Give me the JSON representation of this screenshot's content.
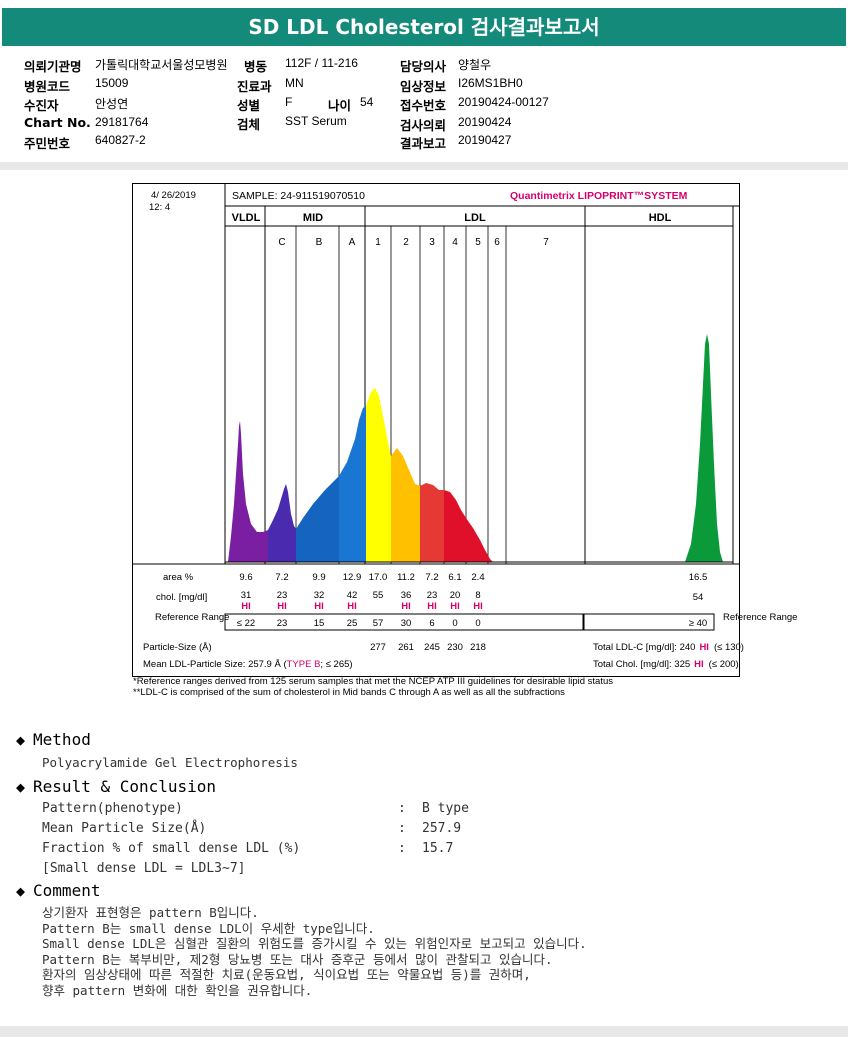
{
  "title": "SD LDL Cholesterol 검사결과보고서",
  "header": {
    "ordering_hospital_label": "의뢰기관명",
    "ordering_hospital": "가톨릭대학교서울성모병원",
    "ward_label": "병동",
    "ward": "112F / 11-216",
    "physician_label": "담당의사",
    "physician": "양철우",
    "hospital_code_label": "병원코드",
    "hospital_code": "15009",
    "department_label": "진료과",
    "department": "MN",
    "clinical_info_label": "임상정보",
    "clinical_info": "I26MS1BH0",
    "patient_label": "수진자",
    "patient": "안성연",
    "sex_label": "성별",
    "sex": "F",
    "age_label": "나이",
    "age": "54",
    "accession_label": "접수번호",
    "accession": "20190424-00127",
    "chart_label": "Chart No.",
    "chart": "29181764",
    "specimen_label": "검체",
    "specimen": "SST Serum",
    "request_date_label": "검사의뢰",
    "request_date": "20190424",
    "report_date_label": "결과보고",
    "report_date": "20190427",
    "resident_label": "주민번호",
    "resident": "640827-2"
  },
  "report": {
    "date": "4/ 26/2019",
    "time": "12: 4",
    "sample": "SAMPLE:   24-911519070510",
    "system": "Quantimetrix LIPOPRINT™SYSTEM",
    "band_groups": [
      "VLDL",
      "MID",
      "LDL",
      "HDL"
    ],
    "sub_bands": [
      "C",
      "B",
      "A",
      "1",
      "2",
      "3",
      "4",
      "5",
      "6",
      "7"
    ],
    "row_labels": {
      "area": "area %",
      "chol": "chol. [mg/dl]",
      "reference": "Reference Range",
      "reference_right": "Reference Range",
      "particle_size": "Particle-Size (Å)",
      "mean_size": "Mean LDL-Particle Size:  257.9 Å (",
      "type_b": "TYPE B",
      "mean_size_tail": "; ≤ 265)"
    },
    "area": [
      "9.6",
      "7.2",
      "9.9",
      "12.9",
      "17.0",
      "11.2",
      "7.2",
      "6.1",
      "2.4"
    ],
    "hdl_area": "16.5",
    "chol": [
      "31",
      "23",
      "32",
      "42",
      "55",
      "36",
      "23",
      "20",
      "8"
    ],
    "hdl_chol": "54",
    "hi_flag": "HI",
    "reference": [
      "≤ 22",
      "23",
      "15",
      "25",
      "57",
      "30",
      "6",
      "0",
      "0"
    ],
    "hdl_reference": "≥ 40",
    "particle_size": [
      "277",
      "261",
      "245",
      "230",
      "218"
    ],
    "total_ldl": "Total LDL-C [mg/dl]:  240",
    "total_ldl_ref": "(≤ 130)",
    "total_chol": "Total Chol. [mg/dl]:   325",
    "total_chol_ref": "(≤ 200)",
    "footnote1": "*Reference ranges derived from 125 serum samples that met the NCEP ATP III guidelines for desirable lipid status",
    "footnote2": "**LDL-C is comprised of the sum of cholesterol in Mid bands C through A as well as all the subfractions"
  },
  "method": {
    "heading": "Method",
    "text": "Polyacrylamide Gel Electrophoresis"
  },
  "result": {
    "heading": "Result & Conclusion",
    "rows": [
      {
        "label": "Pattern(phenotype)",
        "sep": ":",
        "value": "B type"
      },
      {
        "label": "Mean Particle Size(Å)",
        "sep": ":",
        "value": "257.9"
      },
      {
        "label": "Fraction % of small dense LDL (%)",
        "sep": ":",
        "value": "15.7"
      }
    ],
    "note": "[Small dense LDL = LDL3~7]"
  },
  "comment": {
    "heading": "Comment",
    "lines": [
      "상기환자 표현형은 pattern B입니다.",
      "Pattern B는 small dense LDL이 우세한 type입니다.",
      "Small dense LDL은 심혈관 질환의 위험도를 증가시킬 수 있는 위험인자로 보고되고 있습니다.",
      "Pattern B는 복부비만, 제2형 당뇨병 또는 대사 증후군 등에서 많이 관찰되고 있습니다.",
      "환자의 임상상태에 따른 적절한 치료(운동요법, 식이요법 또는 약물요법 등)를 권하며,",
      "향후 pattern 변화에 대한 확인을 권유합니다."
    ]
  },
  "colors": {
    "title_bg": "#138a7a",
    "vldl": "#7b1fa2",
    "midc": "#4a2bb0",
    "midb": "#1565c0",
    "mida": "#1976d2",
    "ldl1": "#ffff00",
    "ldl2": "#ffc000",
    "ldl3": "#e53935",
    "ldl4": "#e0102a",
    "hdl": "#0a9a3a",
    "accent": "#d6006b"
  }
}
